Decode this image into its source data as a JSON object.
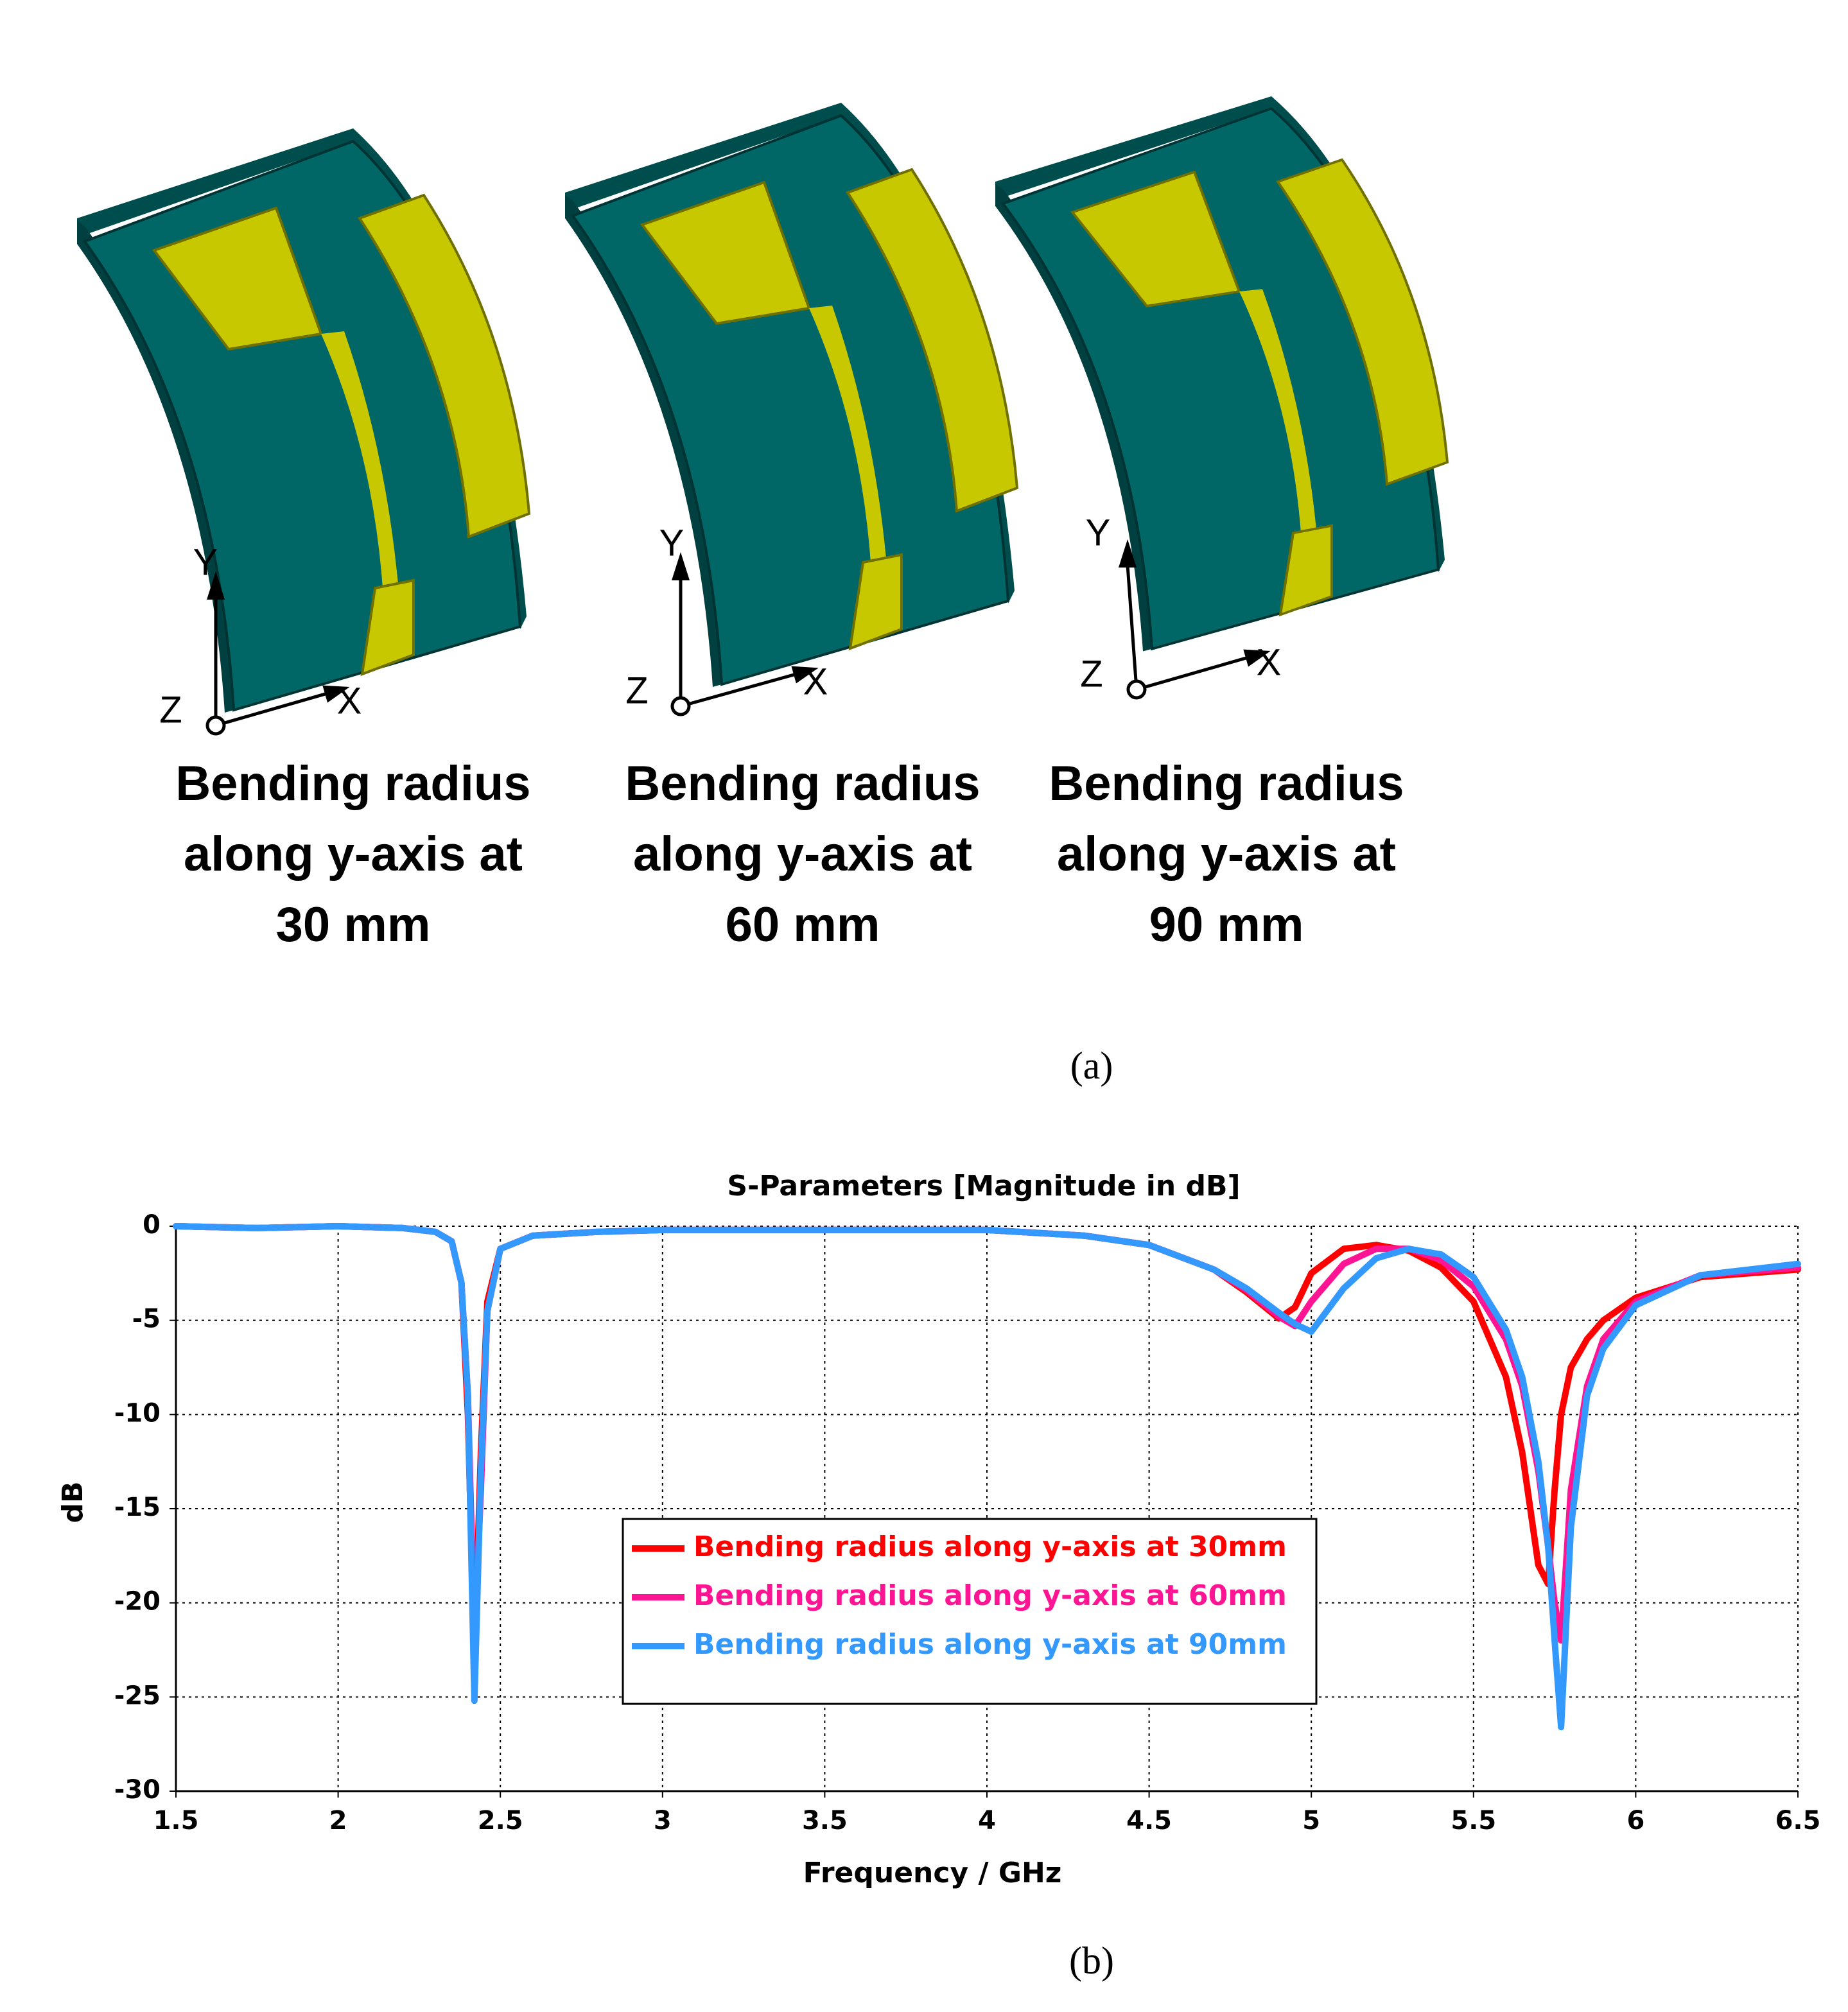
{
  "figure_a": {
    "panels": [
      {
        "lines": [
          "Bending radius",
          "along y-axis at",
          "30 mm"
        ],
        "axes": {
          "y": "Y",
          "z": "Z",
          "x": "X"
        }
      },
      {
        "lines": [
          "Bending radius",
          "along y-axis at",
          "60 mm"
        ],
        "axes": {
          "y": "Y",
          "z": "Z",
          "x": "X"
        }
      },
      {
        "lines": [
          "Bending radius",
          "along y-axis at",
          "90 mm"
        ],
        "axes": {
          "y": "Y",
          "z": "Z",
          "x": "X"
        }
      }
    ],
    "caption": "(a)"
  },
  "chart_data": {
    "type": "line",
    "title": "S-Parameters [Magnitude in dB]",
    "xlabel": "Frequency / GHz",
    "ylabel": "dB",
    "x": [
      1.5,
      1.75,
      2.0,
      2.2,
      2.3,
      2.35,
      2.38,
      2.4,
      2.42,
      2.44,
      2.46,
      2.5,
      2.6,
      2.8,
      3.0,
      3.5,
      4.0,
      4.3,
      4.5,
      4.7,
      4.8,
      4.9,
      4.95,
      5.0,
      5.1,
      5.2,
      5.3,
      5.4,
      5.5,
      5.6,
      5.65,
      5.7,
      5.73,
      5.75,
      5.77,
      5.8,
      5.85,
      5.9,
      6.0,
      6.2,
      6.5
    ],
    "series": [
      {
        "name": "Bending radius along y-axis at 30mm",
        "color": "#ff0000",
        "values": [
          0,
          -0.1,
          0,
          -0.1,
          -0.3,
          -0.8,
          -3,
          -10,
          -23,
          -12,
          -4,
          -1.2,
          -0.5,
          -0.3,
          -0.2,
          -0.2,
          -0.2,
          -0.5,
          -1.0,
          -2.3,
          -3.5,
          -4.9,
          -4.3,
          -2.5,
          -1.2,
          -1.0,
          -1.3,
          -2.2,
          -4,
          -8,
          -12,
          -18,
          -19,
          -14,
          -10,
          -7.5,
          -6,
          -5,
          -3.8,
          -2.7,
          -2.3
        ]
      },
      {
        "name": "Bending radius along y-axis at 60mm",
        "color": "#ff1493",
        "values": [
          0,
          -0.1,
          0,
          -0.1,
          -0.3,
          -0.8,
          -3,
          -9,
          -22,
          -14,
          -4.5,
          -1.2,
          -0.5,
          -0.3,
          -0.2,
          -0.2,
          -0.2,
          -0.5,
          -1.0,
          -2.3,
          -3.4,
          -4.8,
          -5.3,
          -4,
          -2,
          -1.2,
          -1.2,
          -1.8,
          -3.2,
          -6,
          -8.5,
          -13,
          -17,
          -20,
          -22,
          -14,
          -8.5,
          -6,
          -4,
          -2.6,
          -2.2
        ]
      },
      {
        "name": "Bending radius along y-axis at 90mm",
        "color": "#3399ff",
        "values": [
          0,
          -0.1,
          0,
          -0.1,
          -0.3,
          -0.8,
          -3,
          -9,
          -25.2,
          -13,
          -4.5,
          -1.2,
          -0.5,
          -0.3,
          -0.2,
          -0.2,
          -0.2,
          -0.5,
          -1.0,
          -2.3,
          -3.3,
          -4.6,
          -5.2,
          -5.6,
          -3.3,
          -1.7,
          -1.2,
          -1.5,
          -2.7,
          -5.5,
          -8,
          -12.5,
          -17,
          -22,
          -26.6,
          -16,
          -9,
          -6.5,
          -4.2,
          -2.6,
          -2
        ]
      }
    ],
    "xlim": [
      1.5,
      6.5
    ],
    "xticks": [
      1.5,
      2,
      2.5,
      3,
      3.5,
      4,
      4.5,
      5,
      5.5,
      6,
      6.5
    ],
    "ylim": [
      -30,
      0
    ],
    "yticks": [
      0,
      -5,
      -10,
      -15,
      -20,
      -25,
      -30
    ],
    "grid": true,
    "legend": "center"
  },
  "figure_b_caption": "(b)"
}
